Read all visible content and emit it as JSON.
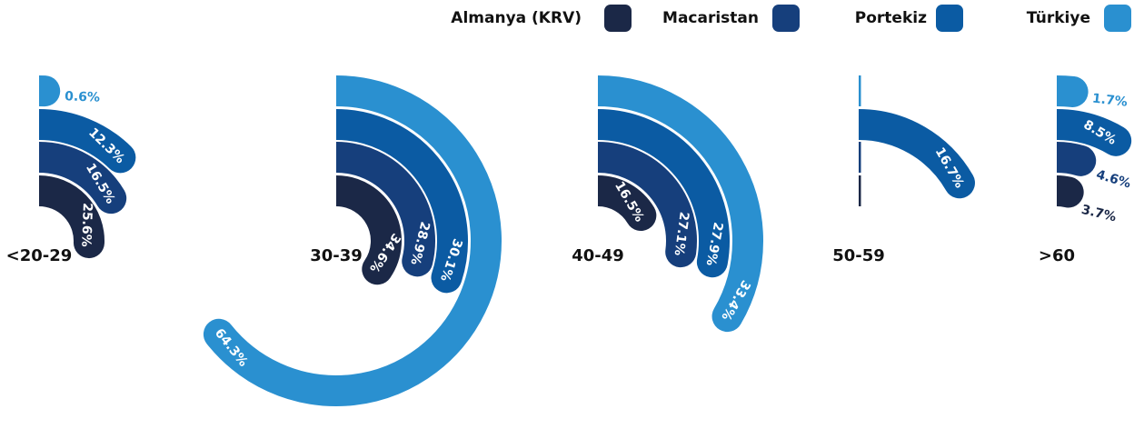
{
  "chart_data": {
    "type": "radial-bar",
    "categories": [
      "<20-29",
      "30-39",
      "40-49",
      "50-59",
      ">60"
    ],
    "series": [
      {
        "name": "Almanya (KRV)",
        "color": "#1b2847",
        "values": [
          25.6,
          34.6,
          16.5,
          0,
          3.7
        ],
        "value_labels": [
          "25.6%",
          "34.6%",
          "16.5%",
          null,
          "3.7%"
        ]
      },
      {
        "name": "Macaristan",
        "color": "#163f7c",
        "values": [
          16.5,
          28.9,
          27.1,
          0,
          4.6
        ],
        "value_labels": [
          "16.5%",
          "28.9%",
          "27.1%",
          null,
          "4.6%"
        ]
      },
      {
        "name": "Portekiz",
        "color": "#0b5ba3",
        "values": [
          12.3,
          30.1,
          27.9,
          16.7,
          8.5
        ],
        "value_labels": [
          "12.3%",
          "30.1%",
          "27.9%",
          "16.7%",
          "8.5%"
        ]
      },
      {
        "name": "Türkiye",
        "color": "#2a90d0",
        "values": [
          0.6,
          64.3,
          33.4,
          0,
          1.7
        ],
        "value_labels": [
          "0.6%",
          "64.3%",
          "33.4%",
          null,
          "1.7%"
        ]
      }
    ],
    "xlim": [
      0,
      100
    ]
  }
}
